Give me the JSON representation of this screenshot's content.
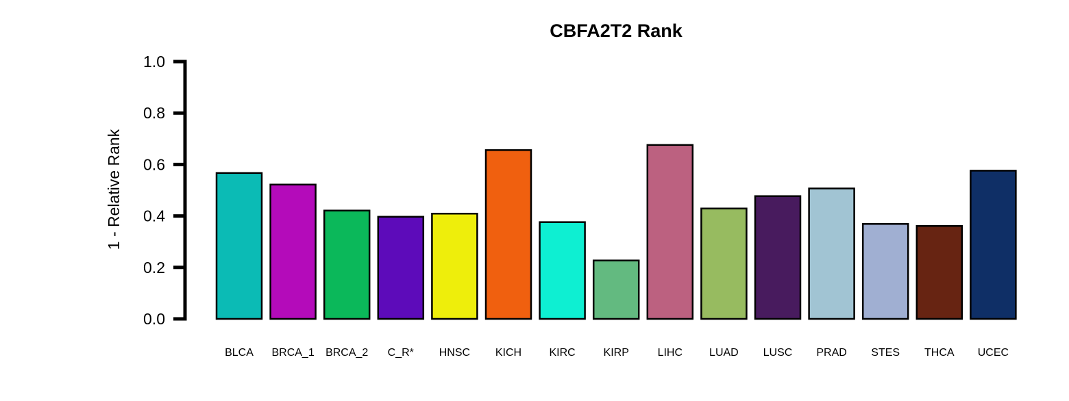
{
  "chart_data": {
    "type": "bar",
    "title": "CBFA2T2 Rank",
    "xlabel": "",
    "ylabel": "1 - Relative Rank",
    "ylim": [
      0,
      1.0
    ],
    "yticks": [
      "0.0",
      "0.2",
      "0.4",
      "0.6",
      "0.8",
      "1.0"
    ],
    "grid": false,
    "categories": [
      "BLCA",
      "BRCA_1",
      "BRCA_2",
      "C_R*",
      "HNSC",
      "KICH",
      "KIRC",
      "KIRP",
      "LIHC",
      "LUAD",
      "LUSC",
      "PRAD",
      "STES",
      "THCA",
      "UCEC"
    ],
    "values": [
      0.567,
      0.522,
      0.421,
      0.397,
      0.409,
      0.656,
      0.376,
      0.227,
      0.676,
      0.429,
      0.477,
      0.507,
      0.369,
      0.361,
      0.576
    ],
    "colors": [
      "#0BBBB5",
      "#B40BBA",
      "#0BB85A",
      "#5D0BBA",
      "#EEEE0B",
      "#F0600F",
      "#0EEFD2",
      "#63BA80",
      "#BC6180",
      "#97BB60",
      "#481B5E",
      "#A1C4D3",
      "#A0AFD2",
      "#672412",
      "#0F2F66"
    ]
  }
}
